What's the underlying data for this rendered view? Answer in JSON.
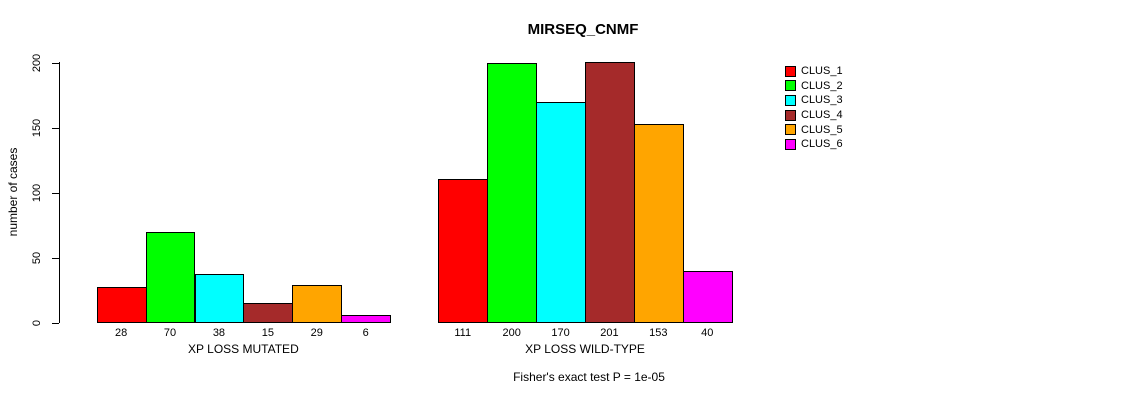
{
  "chart_data": {
    "type": "bar",
    "title": "MIRSEQ_CNMF",
    "ylabel": "number of cases",
    "xlabel": "",
    "ylim": [
      0,
      200
    ],
    "yticks": [
      0,
      50,
      100,
      150,
      200
    ],
    "grid": false,
    "legend_position": "right",
    "categories": [
      "XP LOSS MUTATED",
      "XP LOSS WILD-TYPE"
    ],
    "series": [
      {
        "name": "CLUS_1",
        "color": "#ff0000",
        "values": [
          28,
          111
        ]
      },
      {
        "name": "CLUS_2",
        "color": "#00ff00",
        "values": [
          70,
          200
        ]
      },
      {
        "name": "CLUS_3",
        "color": "#00ffff",
        "values": [
          38,
          170
        ]
      },
      {
        "name": "CLUS_4",
        "color": "#a52a2a",
        "values": [
          15,
          201
        ]
      },
      {
        "name": "CLUS_5",
        "color": "#ffa500",
        "values": [
          29,
          153
        ]
      },
      {
        "name": "CLUS_6",
        "color": "#ff00ff",
        "values": [
          6,
          40
        ]
      }
    ],
    "bar_value_labels_shown": true,
    "annotation": "Fisher's exact test P = 1e-05"
  }
}
